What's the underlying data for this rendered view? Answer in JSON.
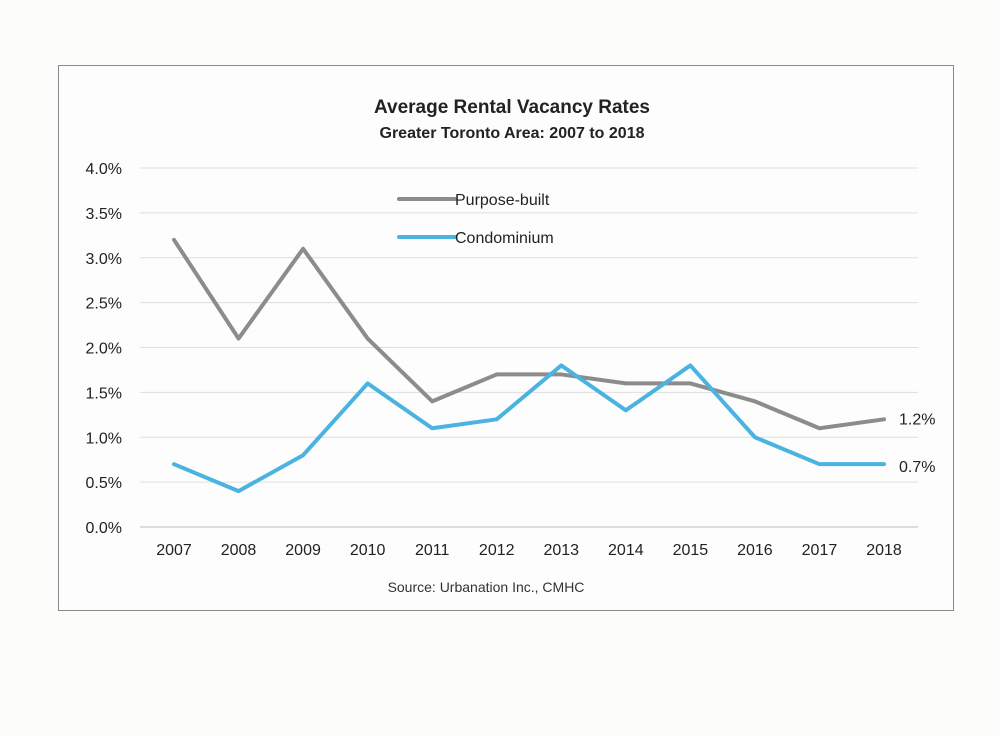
{
  "chart_data": {
    "type": "line",
    "title": "Average Rental Vacancy Rates",
    "subtitle": "Greater Toronto Area: 2007 to 2018",
    "categories": [
      "2007",
      "2008",
      "2009",
      "2010",
      "2011",
      "2012",
      "2013",
      "2014",
      "2015",
      "2016",
      "2017",
      "2018"
    ],
    "ylim": [
      0,
      4.0
    ],
    "yticks": [
      "0.0%",
      "0.5%",
      "1.0%",
      "1.5%",
      "2.0%",
      "2.5%",
      "3.0%",
      "3.5%",
      "4.0%"
    ],
    "ytick_values": [
      0,
      0.5,
      1.0,
      1.5,
      2.0,
      2.5,
      3.0,
      3.5,
      4.0
    ],
    "grid": true,
    "legend_position": "top-center",
    "series": [
      {
        "name": "Purpose-built",
        "color": "#8c8c8c",
        "values": [
          3.2,
          2.1,
          3.1,
          2.1,
          1.4,
          1.7,
          1.7,
          1.6,
          1.6,
          1.4,
          1.1,
          1.2
        ],
        "end_label": "1.2%"
      },
      {
        "name": "Condominium",
        "color": "#4bb3e0",
        "values": [
          0.7,
          0.4,
          0.8,
          1.6,
          1.1,
          1.2,
          1.8,
          1.3,
          1.8,
          1.0,
          0.7,
          0.7
        ],
        "end_label": "0.7%"
      }
    ],
    "source": "Source: Urbanation Inc., CMHC"
  }
}
